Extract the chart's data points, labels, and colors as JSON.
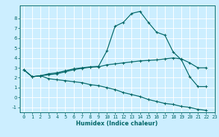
{
  "xlabel": "Humidex (Indice chaleur)",
  "ylabel": "",
  "bg_color": "#cceeff",
  "line_color": "#006666",
  "grid_color": "#ffffff",
  "xlim": [
    -0.5,
    22.5
  ],
  "ylim": [
    -1.5,
    9.3
  ],
  "yticks": [
    -1,
    0,
    1,
    2,
    3,
    4,
    5,
    6,
    7,
    8
  ],
  "xticks": [
    0,
    1,
    2,
    3,
    4,
    5,
    6,
    7,
    8,
    9,
    10,
    11,
    12,
    13,
    14,
    15,
    16,
    17,
    18,
    19,
    20,
    21,
    22,
    23
  ],
  "curve1_x": [
    0,
    1,
    2,
    3,
    4,
    5,
    6,
    7,
    8,
    9,
    10,
    11,
    12,
    13,
    14,
    15,
    16,
    17,
    18,
    19,
    20,
    21,
    22
  ],
  "curve1_y": [
    2.8,
    2.1,
    2.2,
    2.4,
    2.5,
    2.7,
    2.9,
    3.0,
    3.1,
    3.15,
    4.7,
    7.2,
    7.6,
    8.5,
    8.7,
    7.6,
    6.6,
    6.3,
    4.6,
    3.8,
    2.1,
    1.1,
    1.1
  ],
  "curve2_x": [
    0,
    1,
    2,
    3,
    4,
    5,
    6,
    7,
    8,
    9,
    10,
    11,
    12,
    13,
    14,
    15,
    16,
    17,
    18,
    19,
    20,
    21,
    22
  ],
  "curve2_y": [
    2.8,
    2.1,
    2.2,
    2.3,
    2.4,
    2.6,
    2.8,
    2.95,
    3.05,
    3.1,
    3.3,
    3.4,
    3.5,
    3.6,
    3.7,
    3.75,
    3.8,
    3.9,
    4.0,
    3.9,
    3.5,
    3.0,
    3.0
  ],
  "curve3_x": [
    0,
    1,
    2,
    3,
    4,
    5,
    6,
    7,
    8,
    9,
    10,
    11,
    12,
    13,
    14,
    15,
    16,
    17,
    18,
    19,
    20,
    21,
    22
  ],
  "curve3_y": [
    2.8,
    2.1,
    2.2,
    1.9,
    1.8,
    1.7,
    1.6,
    1.5,
    1.3,
    1.2,
    1.0,
    0.8,
    0.5,
    0.3,
    0.1,
    -0.2,
    -0.4,
    -0.6,
    -0.7,
    -0.9,
    -1.0,
    -1.2,
    -1.3
  ],
  "tick_fontsize": 5.0,
  "xlabel_fontsize": 6.0
}
